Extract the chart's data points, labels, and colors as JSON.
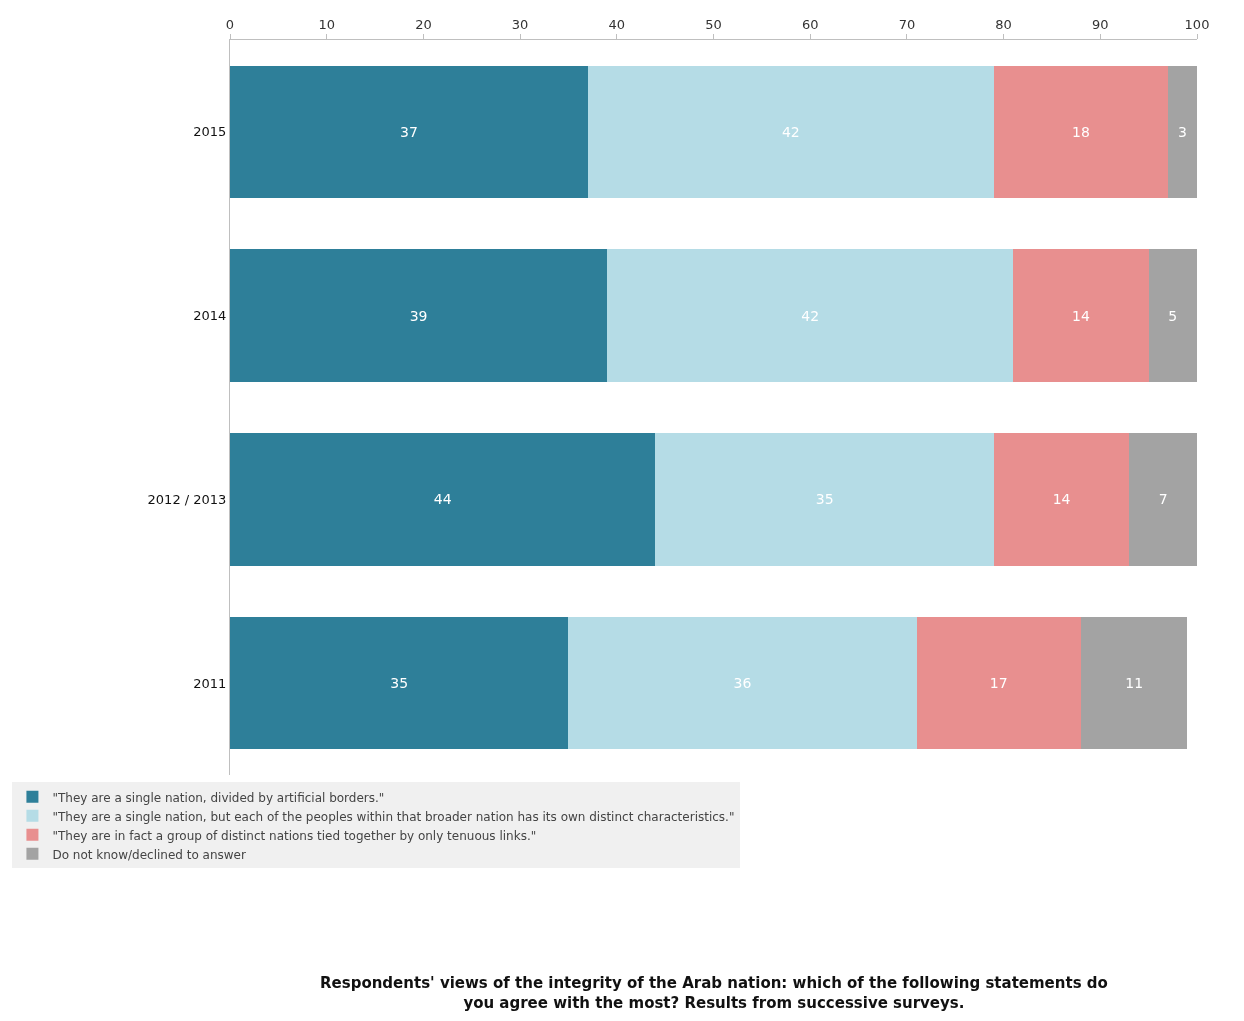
{
  "chart_data": {
    "type": "bar",
    "orientation": "horizontal",
    "stacked": true,
    "data_labels": true,
    "legend": "bottom",
    "title": "Respondents' views of the integrity of the Arab nation: which of the following statements do you agree with the most? Results from successive surveys.",
    "categories": [
      "2015",
      "2014",
      "2012 / 2013",
      "2011"
    ],
    "xlim": [
      0,
      100
    ],
    "xticks": [
      0,
      10,
      20,
      30,
      40,
      50,
      60,
      70,
      80,
      90,
      100
    ],
    "series": [
      {
        "name": "\"They are a single nation, divided by artificial borders.\"",
        "color": "#2e7f99",
        "values": [
          37,
          39,
          44,
          35
        ]
      },
      {
        "name": "\"They are a single nation, but each of the peoples within that broader nation has its own distinct characteristics.\"",
        "color": "#b5dce6",
        "values": [
          42,
          42,
          35,
          36
        ]
      },
      {
        "name": "\"They are in fact a group of distinct nations tied together by only tenuous links.\"",
        "color": "#e88f8f",
        "values": [
          18,
          14,
          14,
          17
        ]
      },
      {
        "name": "Do not know/declined to answer",
        "color": "#a3a3a3",
        "values": [
          3,
          5,
          7,
          11
        ]
      }
    ]
  }
}
